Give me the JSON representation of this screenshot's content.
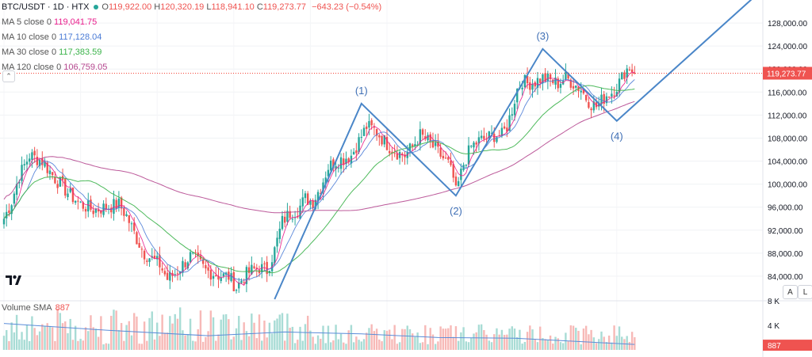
{
  "header": {
    "symbol": "BTC/USDT · 1D · HTX",
    "open_label": "O",
    "open": "119,922.00",
    "high_label": "H",
    "high": "120,320.19",
    "low_label": "L",
    "low": "118,941.10",
    "close_label": "C",
    "close": "119,273.77",
    "change": "−643.23 (−0.54%)"
  },
  "indicators": [
    {
      "label": "MA 5 close 0",
      "value": "119,041.75",
      "color": "#e91e8c"
    },
    {
      "label": "MA 10 close 0",
      "value": "117,128.04",
      "color": "#4a7bd6"
    },
    {
      "label": "MA 30 close 0",
      "value": "117,383.59",
      "color": "#3bb34a"
    },
    {
      "label": "MA 120 close 0",
      "value": "106,759.05",
      "color": "#b5478f"
    }
  ],
  "volume_legend": {
    "label": "Volume SMA",
    "value": "887"
  },
  "buttons": {
    "auto": "A",
    "log": "L"
  },
  "icons": {
    "collapse": "chevron-up-icon",
    "logo": "tradingview-logo-icon"
  },
  "colors": {
    "up": "#26a69a",
    "down": "#ef5350",
    "wave": "#4a86c8",
    "price_line": "#f44336"
  },
  "chart_data": {
    "type": "candlestick",
    "price_axis": {
      "min": 80000,
      "max": 132000,
      "ticks": [
        84000,
        88000,
        92000,
        96000,
        100000,
        104000,
        108000,
        112000,
        116000,
        120000,
        124000,
        128000
      ],
      "tick_labels": [
        "84,000.00",
        "88,000.00",
        "92,000.00",
        "96,000.00",
        "100,000.00",
        "104,000.00",
        "108,000.00",
        "112,000.00",
        "116,000.00",
        "120,000.00",
        "124,000.00",
        "128,000.00"
      ],
      "current_price": 119273.77,
      "current_price_label": "119,273.77"
    },
    "volume_axis": {
      "ticks": [
        4000,
        8000
      ],
      "tick_labels": [
        "4 K",
        "8 K"
      ],
      "current_sma": 887,
      "current_sma_label": "887"
    },
    "close_path": [
      [
        0,
        94000
      ],
      [
        3,
        97000
      ],
      [
        6,
        101500
      ],
      [
        10,
        105000
      ],
      [
        15,
        104000
      ],
      [
        20,
        101000
      ],
      [
        25,
        98500
      ],
      [
        30,
        96500
      ],
      [
        35,
        95500
      ],
      [
        40,
        96000
      ],
      [
        45,
        96500
      ],
      [
        48,
        94500
      ],
      [
        52,
        90500
      ],
      [
        55,
        88000
      ],
      [
        58,
        87000
      ],
      [
        61,
        86000
      ],
      [
        64,
        83500
      ],
      [
        67,
        84500
      ],
      [
        70,
        86000
      ],
      [
        73,
        87500
      ],
      [
        76,
        86500
      ],
      [
        79,
        85000
      ],
      [
        82,
        84500
      ],
      [
        85,
        84000
      ],
      [
        88,
        84000
      ],
      [
        91,
        82000
      ],
      [
        94,
        84000
      ],
      [
        97,
        85000
      ],
      [
        100,
        85500
      ],
      [
        103,
        85000
      ],
      [
        106,
        88500
      ],
      [
        109,
        93500
      ],
      [
        112,
        95000
      ],
      [
        115,
        95500
      ],
      [
        118,
        97500
      ],
      [
        121,
        97000
      ],
      [
        124,
        99500
      ],
      [
        127,
        103000
      ],
      [
        130,
        104000
      ],
      [
        133,
        104500
      ],
      [
        136,
        105000
      ],
      [
        139,
        107500
      ],
      [
        142,
        110000
      ],
      [
        145,
        109500
      ],
      [
        148,
        108000
      ],
      [
        151,
        106500
      ],
      [
        154,
        105500
      ],
      [
        157,
        105000
      ],
      [
        160,
        106500
      ],
      [
        163,
        108500
      ],
      [
        166,
        107500
      ],
      [
        169,
        106000
      ],
      [
        172,
        104500
      ],
      [
        174,
        103500
      ],
      [
        176,
        101000
      ],
      [
        177,
        98500
      ],
      [
        180,
        103500
      ],
      [
        183,
        106500
      ],
      [
        186,
        107500
      ],
      [
        189,
        108000
      ],
      [
        192,
        108500
      ],
      [
        195,
        108500
      ],
      [
        197,
        110000
      ],
      [
        199,
        113000
      ],
      [
        201,
        116500
      ],
      [
        203,
        118000
      ],
      [
        205,
        117500
      ],
      [
        208,
        117800
      ],
      [
        211,
        118500
      ],
      [
        214,
        118000
      ],
      [
        217,
        117500
      ],
      [
        220,
        118500
      ],
      [
        223,
        117500
      ],
      [
        226,
        116500
      ],
      [
        228,
        115000
      ],
      [
        230,
        114000
      ],
      [
        232,
        113500
      ],
      [
        234,
        114500
      ],
      [
        236,
        115500
      ],
      [
        238,
        116000
      ],
      [
        240,
        117000
      ],
      [
        242,
        118500
      ],
      [
        243,
        119500
      ],
      [
        245,
        120500
      ],
      [
        247,
        119273.77
      ]
    ],
    "candle_count": 248,
    "volume_sma_series": [
      [
        0,
        4300
      ],
      [
        40,
        3200
      ],
      [
        80,
        2300
      ],
      [
        110,
        2900
      ],
      [
        140,
        2600
      ],
      [
        170,
        2000
      ],
      [
        200,
        1900
      ],
      [
        230,
        1250
      ],
      [
        247,
        887
      ]
    ],
    "moving_averages": [
      {
        "name": "MA 5",
        "period": 5
      },
      {
        "name": "MA 10",
        "period": 10
      },
      {
        "name": "MA 30",
        "period": 30
      },
      {
        "name": "MA 120",
        "period": 120
      }
    ],
    "wave_pattern": {
      "points": [
        [
          106,
          80000
        ],
        [
          140,
          114000
        ],
        [
          177,
          98000
        ],
        [
          211,
          123500
        ],
        [
          240,
          111000
        ],
        [
          300,
          135000
        ]
      ],
      "labels": [
        {
          "text": "(1)",
          "at": 140,
          "price": 114000,
          "pos": "above"
        },
        {
          "text": "(2)",
          "at": 177,
          "price": 98000,
          "pos": "below"
        },
        {
          "text": "(3)",
          "at": 211,
          "price": 123500,
          "pos": "above"
        },
        {
          "text": "(4)",
          "at": 240,
          "price": 111000,
          "pos": "below"
        }
      ]
    }
  }
}
